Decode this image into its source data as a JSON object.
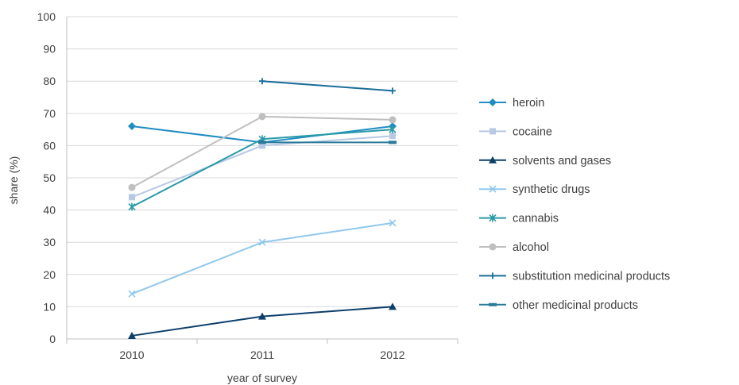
{
  "chart_data": {
    "type": "line",
    "x": [
      "2010",
      "2011",
      "2012"
    ],
    "xlabel": "year of survey",
    "ylabel": "share (%)",
    "ylim": [
      0,
      100
    ],
    "yticks": [
      0,
      10,
      20,
      30,
      40,
      50,
      60,
      70,
      80,
      90,
      100
    ],
    "grid": true,
    "legend_position": "right",
    "series": [
      {
        "name": "heroin",
        "values": [
          66,
          61,
          66
        ],
        "color": "#1f8dc4",
        "marker": "diamond"
      },
      {
        "name": "cocaine",
        "values": [
          44,
          60,
          63
        ],
        "color": "#b7c9e4",
        "marker": "square"
      },
      {
        "name": "solvents and gases",
        "values": [
          1,
          7,
          10
        ],
        "color": "#0d3f6b",
        "marker": "triangle"
      },
      {
        "name": "synthetic drugs",
        "values": [
          14,
          30,
          36
        ],
        "color": "#8fc8ee",
        "marker": "x"
      },
      {
        "name": "cannabis",
        "values": [
          41,
          62,
          65
        ],
        "color": "#2a9aa8",
        "marker": "star"
      },
      {
        "name": "alcohol",
        "values": [
          47,
          69,
          68
        ],
        "color": "#bfbfbf",
        "marker": "circle"
      },
      {
        "name": "substitution medicinal products",
        "values": [
          null,
          80,
          77
        ],
        "color": "#1a6d99",
        "marker": "plus"
      },
      {
        "name": "other medicinal products",
        "values": [
          null,
          61,
          61
        ],
        "color": "#2a7a9a",
        "marker": "dash"
      }
    ]
  }
}
